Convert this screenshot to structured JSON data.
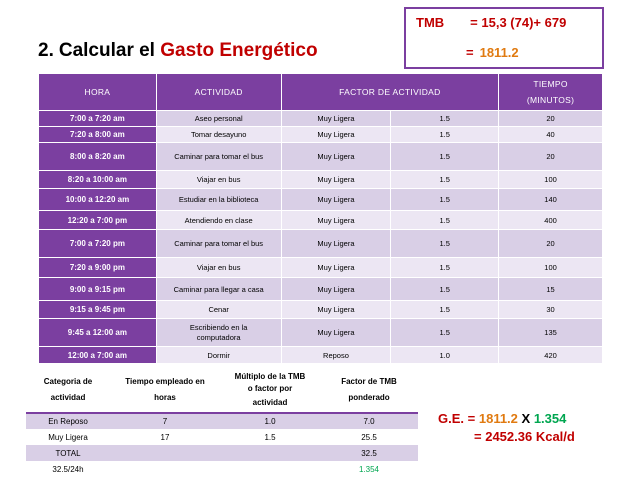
{
  "title": {
    "number": "2.",
    "prefix": "Calcular el",
    "highlight": "Gasto Energético"
  },
  "tmb": {
    "label": "TMB",
    "formula": "= 15,3 (74)+ 679",
    "result_eq": "=",
    "result": "1811.2"
  },
  "main_table": {
    "headers": {
      "hora": "HORA",
      "actividad": "ACTIVIDAD",
      "factor": "FACTOR DE ACTIVIDAD",
      "tiempo_line1": "TIEMPO",
      "tiempo_line2": "(MINUTOS)"
    },
    "rows": [
      {
        "hora": "7:00 a 7:20 am",
        "actividad": "Aseo personal",
        "nivel": "Muy Ligera",
        "factor": "1.5",
        "tiempo": "20"
      },
      {
        "hora": "7:20 a 8:00 am",
        "actividad": "Tomar desayuno",
        "nivel": "Muy Ligera",
        "factor": "1.5",
        "tiempo": "40"
      },
      {
        "hora": "8:00 a 8:20 am",
        "actividad": "Caminar para tomar el bus",
        "nivel": "Muy Ligera",
        "factor": "1.5",
        "tiempo": "20"
      },
      {
        "hora": "8:20 a 10:00 am",
        "actividad": "Viajar en bus",
        "nivel": "Muy Ligera",
        "factor": "1.5",
        "tiempo": "100"
      },
      {
        "hora": "10:00 a 12:20 am",
        "actividad": "Estudiar en la biblioteca",
        "nivel": "Muy Ligera",
        "factor": "1.5",
        "tiempo": "140"
      },
      {
        "hora": "12:20 a 7:00 pm",
        "actividad": "Atendiendo en clase",
        "nivel": "Muy Ligera",
        "factor": "1.5",
        "tiempo": "400"
      },
      {
        "hora": "7:00 a 7:20 pm",
        "actividad": "Caminar para tomar el bus",
        "nivel": "Muy Ligera",
        "factor": "1.5",
        "tiempo": "20"
      },
      {
        "hora": "7:20 a 9:00 pm",
        "actividad": "Viajar en bus",
        "nivel": "Muy Ligera",
        "factor": "1.5",
        "tiempo": "100"
      },
      {
        "hora": "9:00 a 9:15 pm",
        "actividad": "Caminar para llegar a casa",
        "nivel": "Muy Ligera",
        "factor": "1.5",
        "tiempo": "15"
      },
      {
        "hora": "9:15 a 9:45 pm",
        "actividad": "Cenar",
        "nivel": "Muy Ligera",
        "factor": "1.5",
        "tiempo": "30"
      },
      {
        "hora": "9:45 a 12:00 am",
        "actividad_line1": "Escribiendo en la",
        "actividad_line2": "computadora",
        "nivel": "Muy Ligera",
        "factor": "1.5",
        "tiempo": "135"
      },
      {
        "hora": "12:00 a 7:00 am",
        "actividad": "Dormir",
        "nivel": "Reposo",
        "factor": "1.0",
        "tiempo": "420"
      }
    ]
  },
  "summary_table": {
    "headers": {
      "categoria_l1": "Categoria de",
      "categoria_l2": "actividad",
      "tiempo_l1": "Tiempo empleado en",
      "tiempo_l2": "horas",
      "multiplo_l1": "Múltiplo de la TMB",
      "multiplo_l2": "o factor por",
      "multiplo_l3": "actividad",
      "factor_l1": "Factor de TMB",
      "factor_l2": "ponderado"
    },
    "rows": [
      {
        "categoria": "En Reposo",
        "tiempo": "7",
        "multiplo": "1.0",
        "factor": "7.0"
      },
      {
        "categoria": "Muy Ligera",
        "tiempo": "17",
        "multiplo": "1.5",
        "factor": "25.5"
      },
      {
        "categoria": "TOTAL",
        "tiempo": "",
        "multiplo": "",
        "factor": "32.5"
      },
      {
        "categoria": "32.5/24h",
        "tiempo": "",
        "multiplo": "",
        "factor": "1.354"
      }
    ]
  },
  "ge": {
    "label": "G.E.",
    "eq1": "=",
    "tmb": "1811.2",
    "x": "X",
    "factor": "1.354",
    "eq2": "=",
    "result": "2452.36 Kcal/d"
  },
  "colors": {
    "purple": "#7b3fa0",
    "red": "#c00000",
    "orange": "#e07a10",
    "green": "#00a650"
  }
}
